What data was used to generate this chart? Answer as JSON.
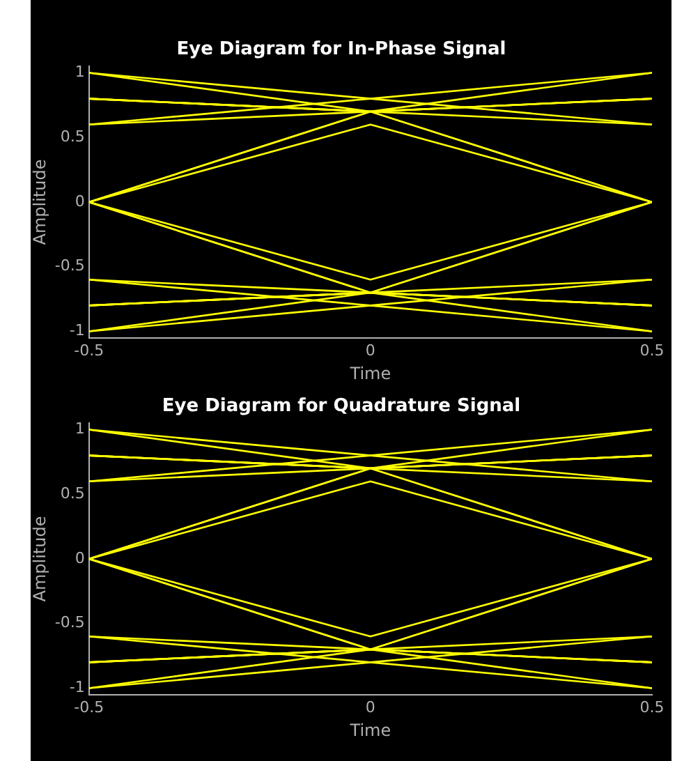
{
  "chart_data": [
    {
      "type": "line",
      "title": "Eye Diagram for In-Phase Signal",
      "xlabel": "Time",
      "ylabel": "Amplitude",
      "x": [
        -0.5,
        0,
        0.5
      ],
      "xlim": [
        -0.5,
        0.5
      ],
      "xticks": [
        -0.5,
        0,
        0.5
      ],
      "ylim": [
        -1.05,
        1.05
      ],
      "yticks": [
        -1,
        -0.5,
        0,
        0.5,
        1
      ],
      "grid": false,
      "legend": false,
      "marker": "none",
      "line_style": "solid",
      "series": [
        {
          "color": "#ffff00",
          "values": [
            0,
            0.6,
            0
          ]
        },
        {
          "color": "#ffff00",
          "values": [
            0,
            0.7,
            0
          ]
        },
        {
          "color": "#ffff00",
          "values": [
            0,
            0.7,
            0.8
          ]
        },
        {
          "color": "#ffff00",
          "values": [
            0.8,
            0.7,
            0
          ]
        },
        {
          "color": "#ffff00",
          "values": [
            1,
            0.8,
            0.6
          ]
        },
        {
          "color": "#ffff00",
          "values": [
            0.6,
            0.8,
            1
          ]
        },
        {
          "color": "#ffff00",
          "values": [
            0.6,
            0.7,
            0.8
          ]
        },
        {
          "color": "#ffff00",
          "values": [
            0.8,
            0.7,
            0.6
          ]
        },
        {
          "color": "#ffff00",
          "values": [
            1,
            0.7,
            0.8
          ]
        },
        {
          "color": "#ffff00",
          "values": [
            0.8,
            0.7,
            1
          ]
        },
        {
          "color": "#ffff00",
          "values": [
            0,
            -0.6,
            0
          ]
        },
        {
          "color": "#ffff00",
          "values": [
            0,
            -0.7,
            0
          ]
        },
        {
          "color": "#ffff00",
          "values": [
            0,
            -0.7,
            -0.8
          ]
        },
        {
          "color": "#ffff00",
          "values": [
            -0.8,
            -0.7,
            0
          ]
        },
        {
          "color": "#ffff00",
          "values": [
            -1,
            -0.8,
            -0.6
          ]
        },
        {
          "color": "#ffff00",
          "values": [
            -0.6,
            -0.8,
            -1
          ]
        },
        {
          "color": "#ffff00",
          "values": [
            -0.6,
            -0.7,
            -0.8
          ]
        },
        {
          "color": "#ffff00",
          "values": [
            -0.8,
            -0.7,
            -0.6
          ]
        },
        {
          "color": "#ffff00",
          "values": [
            -1,
            -0.7,
            -0.8
          ]
        },
        {
          "color": "#ffff00",
          "values": [
            -0.8,
            -0.7,
            -1
          ]
        }
      ]
    },
    {
      "type": "line",
      "title": "Eye Diagram for Quadrature Signal",
      "xlabel": "Time",
      "ylabel": "Amplitude",
      "x": [
        -0.5,
        0,
        0.5
      ],
      "xlim": [
        -0.5,
        0.5
      ],
      "xticks": [
        -0.5,
        0,
        0.5
      ],
      "ylim": [
        -1.05,
        1.05
      ],
      "yticks": [
        -1,
        -0.5,
        0,
        0.5,
        1
      ],
      "grid": false,
      "legend": false,
      "marker": "none",
      "line_style": "solid",
      "series": [
        {
          "color": "#ffff00",
          "values": [
            0,
            0.6,
            0
          ]
        },
        {
          "color": "#ffff00",
          "values": [
            0,
            0.7,
            0
          ]
        },
        {
          "color": "#ffff00",
          "values": [
            0,
            0.7,
            0.8
          ]
        },
        {
          "color": "#ffff00",
          "values": [
            0.8,
            0.7,
            0
          ]
        },
        {
          "color": "#ffff00",
          "values": [
            1,
            0.8,
            0.6
          ]
        },
        {
          "color": "#ffff00",
          "values": [
            0.6,
            0.8,
            1
          ]
        },
        {
          "color": "#ffff00",
          "values": [
            0.6,
            0.7,
            0.8
          ]
        },
        {
          "color": "#ffff00",
          "values": [
            0.8,
            0.7,
            0.6
          ]
        },
        {
          "color": "#ffff00",
          "values": [
            1,
            0.7,
            0.8
          ]
        },
        {
          "color": "#ffff00",
          "values": [
            0.8,
            0.7,
            1
          ]
        },
        {
          "color": "#ffff00",
          "values": [
            0,
            -0.6,
            0
          ]
        },
        {
          "color": "#ffff00",
          "values": [
            0,
            -0.7,
            0
          ]
        },
        {
          "color": "#ffff00",
          "values": [
            0,
            -0.7,
            -0.8
          ]
        },
        {
          "color": "#ffff00",
          "values": [
            -0.8,
            -0.7,
            0
          ]
        },
        {
          "color": "#ffff00",
          "values": [
            -1,
            -0.8,
            -0.6
          ]
        },
        {
          "color": "#ffff00",
          "values": [
            -0.6,
            -0.8,
            -1
          ]
        },
        {
          "color": "#ffff00",
          "values": [
            -0.6,
            -0.7,
            -0.8
          ]
        },
        {
          "color": "#ffff00",
          "values": [
            -0.8,
            -0.7,
            -0.6
          ]
        },
        {
          "color": "#ffff00",
          "values": [
            -1,
            -0.7,
            -0.8
          ]
        },
        {
          "color": "#ffff00",
          "values": [
            -0.8,
            -0.7,
            -1
          ]
        }
      ]
    }
  ]
}
